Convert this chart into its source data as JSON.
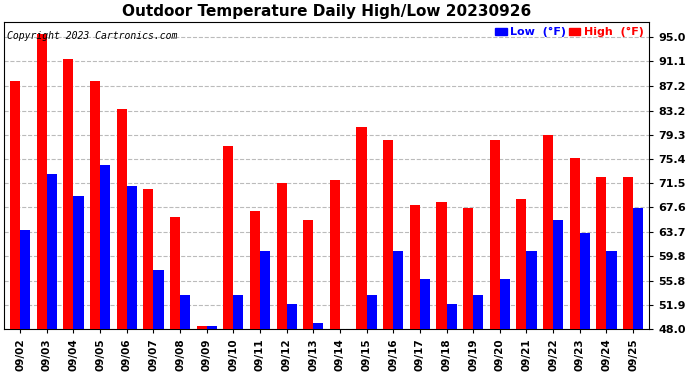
{
  "title": "Outdoor Temperature Daily High/Low 20230926",
  "copyright": "Copyright 2023 Cartronics.com",
  "dates": [
    "09/02",
    "09/03",
    "09/04",
    "09/05",
    "09/06",
    "09/07",
    "09/08",
    "09/09",
    "09/10",
    "09/11",
    "09/12",
    "09/13",
    "09/14",
    "09/15",
    "09/16",
    "09/17",
    "09/18",
    "09/19",
    "09/20",
    "09/21",
    "09/22",
    "09/23",
    "09/24",
    "09/25"
  ],
  "high": [
    88.0,
    95.5,
    91.5,
    88.0,
    83.5,
    70.5,
    66.0,
    48.5,
    77.5,
    67.0,
    71.5,
    65.5,
    72.0,
    80.5,
    78.5,
    68.0,
    68.5,
    67.5,
    78.5,
    69.0,
    79.3,
    75.5,
    72.5,
    72.5
  ],
  "low": [
    64.0,
    73.0,
    69.5,
    74.5,
    71.0,
    57.5,
    53.5,
    48.5,
    53.5,
    60.5,
    52.0,
    49.0,
    48.0,
    53.5,
    60.5,
    56.0,
    52.0,
    53.5,
    56.0,
    60.5,
    65.5,
    63.5,
    60.5,
    67.5
  ],
  "yticks": [
    48.0,
    51.9,
    55.8,
    59.8,
    63.7,
    67.6,
    71.5,
    75.4,
    79.3,
    83.2,
    87.2,
    91.1,
    95.0
  ],
  "ylim": [
    48.0,
    97.5
  ],
  "bar_width": 0.38,
  "high_color": "#ff0000",
  "low_color": "#0000ff",
  "bg_color": "#ffffff",
  "grid_color": "#bbbbbb",
  "title_fontsize": 11,
  "tick_fontsize": 7.5,
  "ytick_fontsize": 8,
  "legend_fontsize": 8,
  "copyright_fontsize": 7
}
